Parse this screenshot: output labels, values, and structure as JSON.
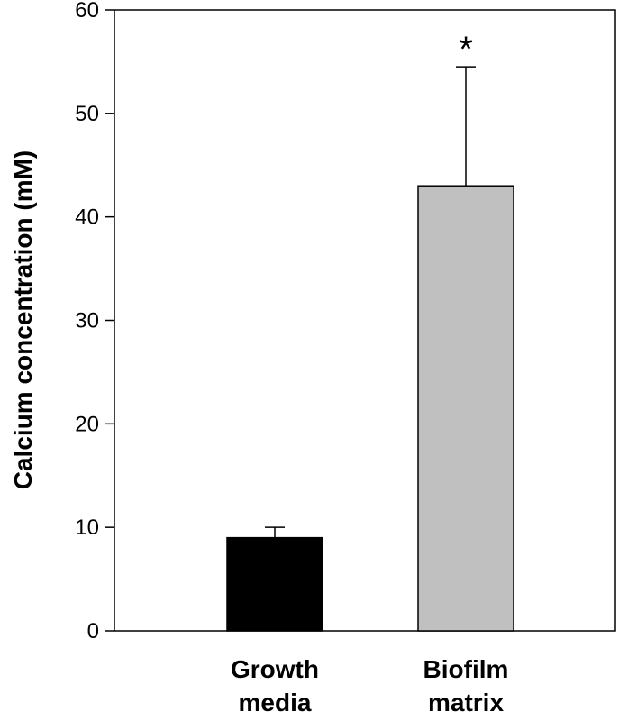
{
  "chart_data": {
    "type": "bar",
    "title": "",
    "xlabel": "",
    "ylabel": "Calcium concentration (mM)",
    "ylim": [
      0,
      60
    ],
    "yticks": [
      0,
      10,
      20,
      30,
      40,
      50,
      60
    ],
    "categories": [
      [
        "Growth",
        "media"
      ],
      [
        "Biofilm",
        "matrix"
      ]
    ],
    "values": [
      9,
      43
    ],
    "errors": [
      1,
      11.5
    ],
    "bar_colors": [
      "#000000",
      "#c0c0c0"
    ],
    "annotations": [
      {
        "category_index": 1,
        "text": "*"
      }
    ],
    "grid": false,
    "legend": "none"
  }
}
